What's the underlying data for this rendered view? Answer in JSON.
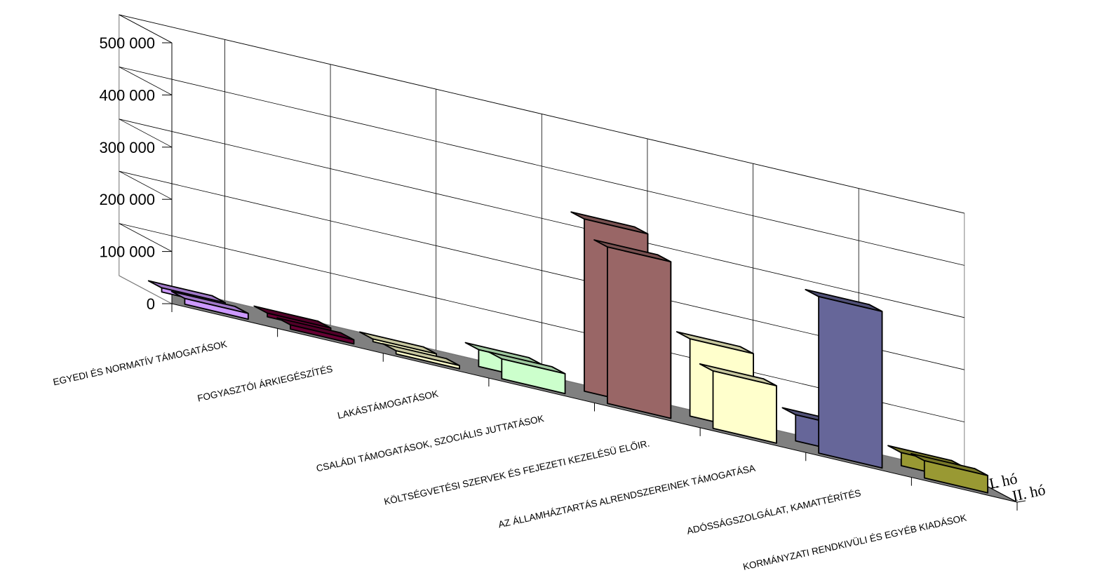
{
  "chart_data": {
    "type": "bar",
    "categories": [
      "EGYEDI ÉS NORMATÍV TÁMOGATÁSOK",
      "FOGYASZTÓI ÁRKIEGÉSZÍTÉS",
      "LAKÁSTÁMOGATÁSOK",
      "CSALÁDI TÁMOGATÁSOK, SZOCIÁLIS JUTTATÁSOK",
      "KÖLTSÉGVETÉSI SZERVEK ÉS FEJEZETI KEZELÉSÜ ELŐIR.",
      "AZ ÁLLAMHÁZTARTÁS ALRENDSZEREINEK TÁMOGATÁSA",
      "ADÓSSÁGSZOLGÁLAT, KAMATTÉRÍTÉS",
      "KORMÁNYZATI RENDKIVÜLI ÉS EGYÉB KIADÁSOK"
    ],
    "series": [
      {
        "name": "I. hó",
        "values": [
          8000,
          7000,
          5000,
          32000,
          330000,
          148000,
          50000,
          25000
        ]
      },
      {
        "name": "II. hó",
        "values": [
          11000,
          8000,
          6000,
          38000,
          300000,
          110000,
          300000,
          33000
        ]
      }
    ],
    "colors": [
      "#cc99ff",
      "#660033",
      "#ffffcc",
      "#ccffcc",
      "#996666",
      "#ffffcc",
      "#666699",
      "#999933"
    ],
    "yticks": [
      "0",
      "100 000",
      "200 000",
      "300 000",
      "400 000",
      "500 000"
    ],
    "ylim": [
      0,
      500000
    ],
    "projection": "3d-column",
    "grid": true,
    "title": "",
    "xlabel": "",
    "ylabel": ""
  }
}
